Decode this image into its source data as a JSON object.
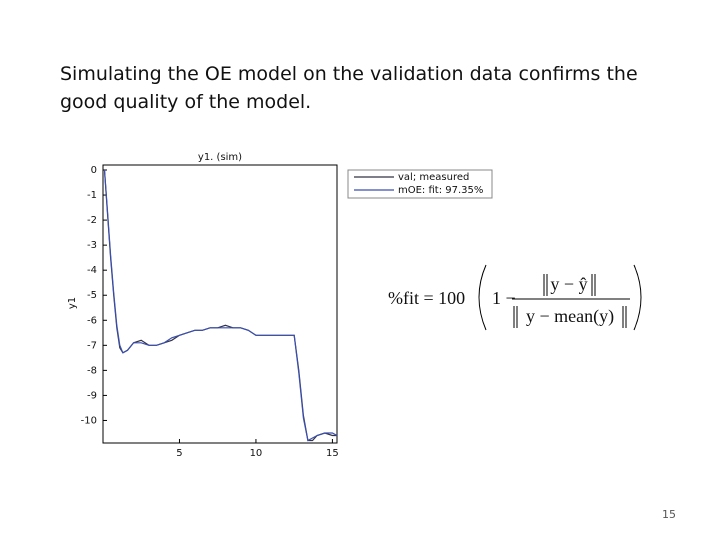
{
  "slide": {
    "lines": [
      "Simulating the OE model on the validation data confirms the",
      "good quality of the model."
    ],
    "page_number": "15"
  },
  "formula": {
    "lhs": "%fit = 100",
    "one": "1 −",
    "numerator": "y − ŷ",
    "denominator": "y − mean(y)"
  },
  "chart_data": {
    "type": "line",
    "title": "y1. (sim)",
    "y_label": "y1",
    "x": [
      0.1,
      0.3,
      0.5,
      0.7,
      0.9,
      1.1,
      1.3,
      1.6,
      2,
      2.5,
      3,
      3.5,
      4,
      4.5,
      5,
      5.5,
      6,
      6.5,
      7,
      7.5,
      8,
      8.5,
      9,
      9.5,
      10,
      10.5,
      11,
      11.5,
      12,
      12.5,
      12.8,
      13.1,
      13.4,
      13.7,
      14,
      14.5,
      15,
      15.3
    ],
    "series": [
      {
        "name": "val; measured",
        "color": "#333344",
        "values": [
          0,
          -1.8,
          -3.5,
          -5,
          -6.3,
          -7.1,
          -7.3,
          -7.2,
          -6.9,
          -6.8,
          -7.0,
          -7.0,
          -6.9,
          -6.8,
          -6.6,
          -6.5,
          -6.4,
          -6.4,
          -6.3,
          -6.3,
          -6.2,
          -6.3,
          -6.3,
          -6.4,
          -6.6,
          -6.6,
          -6.6,
          -6.6,
          -6.6,
          -6.6,
          -8.0,
          -9.8,
          -10.8,
          -10.8,
          -10.6,
          -10.5,
          -10.6,
          -10.6
        ]
      },
      {
        "name": "mOE: fit: 97.35%",
        "color": "#3a4fb0",
        "values": [
          0,
          -1.7,
          -3.4,
          -4.9,
          -6.2,
          -7.0,
          -7.3,
          -7.2,
          -6.9,
          -6.9,
          -7.0,
          -7.0,
          -6.9,
          -6.7,
          -6.6,
          -6.5,
          -6.4,
          -6.4,
          -6.3,
          -6.3,
          -6.3,
          -6.3,
          -6.3,
          -6.4,
          -6.6,
          -6.6,
          -6.6,
          -6.6,
          -6.6,
          -6.6,
          -8.1,
          -9.9,
          -10.8,
          -10.7,
          -10.6,
          -10.5,
          -10.5,
          -10.6
        ]
      }
    ],
    "xlim": [
      0,
      15.3
    ],
    "ylim": [
      -10.9,
      0.2
    ],
    "xticks": [
      5,
      10,
      15
    ],
    "yticks": [
      0,
      -1,
      -2,
      -3,
      -4,
      -5,
      -6,
      -7,
      -8,
      -9,
      -10
    ],
    "grid": false,
    "legend": "outside-top-right"
  }
}
